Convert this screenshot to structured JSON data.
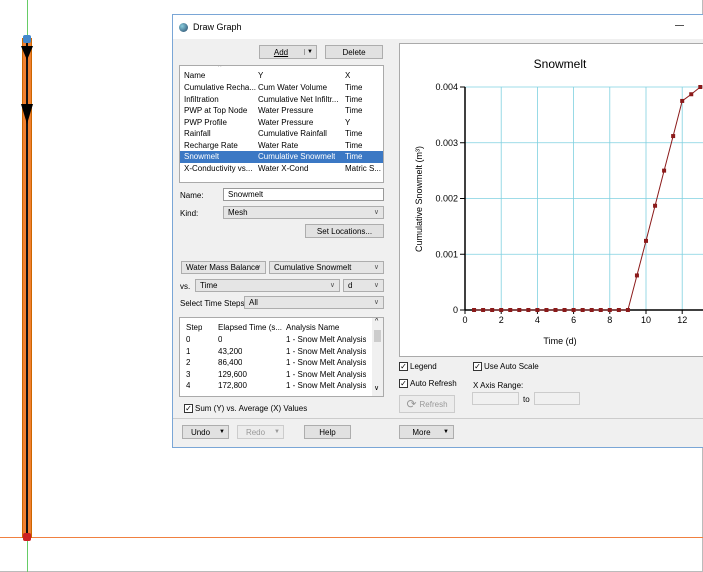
{
  "window": {
    "title": "Draw Graph"
  },
  "toolbar": {
    "add": "Add",
    "delete": "Delete"
  },
  "graphs": {
    "columns": [
      "Name",
      "Y",
      "X"
    ],
    "rows": [
      [
        "Cumulative Recha...",
        "Cum Water Volume",
        "Time"
      ],
      [
        "Infiltration",
        "Cumulative Net Infiltr...",
        "Time"
      ],
      [
        "PWP at Top Node",
        "Water Pressure",
        "Time"
      ],
      [
        "PWP Profile",
        "Water Pressure",
        "Y"
      ],
      [
        "Rainfall",
        "Cumulative Rainfall",
        "Time"
      ],
      [
        "Recharge Rate",
        "Water Rate",
        "Time"
      ],
      [
        "Snowmelt",
        "Cumulative Snowmelt",
        "Time"
      ],
      [
        "X-Conductivity vs...",
        "Water X-Cond",
        "Matric S..."
      ]
    ],
    "selected_index": 6
  },
  "form": {
    "name_label": "Name:",
    "name_value": "Snowmelt",
    "kind_label": "Kind:",
    "kind_value": "Mesh",
    "set_locations": "Set Locations...",
    "category": "Water Mass Balance",
    "quantity": "Cumulative Snowmelt",
    "vs_label": "vs.",
    "vs_value": "Time",
    "unit": "d",
    "steps_label": "Select Time Steps:",
    "steps_value": "All"
  },
  "steps": {
    "columns": [
      "Step",
      "Elapsed Time (s...",
      "Analysis Name"
    ],
    "rows": [
      [
        "0",
        "0",
        "1 - Snow Melt Analysis"
      ],
      [
        "1",
        "43,200",
        "1 - Snow Melt Analysis"
      ],
      [
        "2",
        "86,400",
        "1 - Snow Melt Analysis"
      ],
      [
        "3",
        "129,600",
        "1 - Snow Melt Analysis"
      ],
      [
        "4",
        "172,800",
        "1 - Snow Melt Analysis"
      ]
    ]
  },
  "sum_label": "Sum (Y) vs. Average (X) Values",
  "sum_checked": true,
  "bottom": {
    "undo": "Undo",
    "redo": "Redo",
    "help": "Help",
    "more": "More"
  },
  "options": {
    "legend": "Legend",
    "legend_checked": true,
    "auto_scale": "Use Auto Scale",
    "auto_scale_checked": true,
    "auto_refresh": "Auto Refresh",
    "auto_refresh_checked": true,
    "refresh": "Refresh",
    "x_range_label": "X Axis Range:",
    "to_label": "to"
  },
  "chart_data": {
    "type": "line",
    "title": "Snowmelt",
    "xlabel": "Time (d)",
    "ylabel": "Cumulative Snowmelt (m³)",
    "xlim": [
      0,
      13
    ],
    "ylim": [
      0,
      0.004
    ],
    "xticks": [
      "0",
      "2",
      "4",
      "6",
      "8",
      "10",
      "12"
    ],
    "yticks": [
      "0",
      "0.001",
      "0.002",
      "0.003",
      "0.004"
    ],
    "grid": true,
    "color": "#8b1a1a",
    "grid_color": "#7fd0e0",
    "x": [
      0.5,
      1,
      1.5,
      2,
      2.5,
      3,
      3.5,
      4,
      4.5,
      5,
      5.5,
      6,
      6.5,
      7,
      7.5,
      8,
      8.5,
      9,
      9.5,
      10,
      10.5,
      11,
      11.5,
      12,
      12.5,
      13
    ],
    "y": [
      0,
      0,
      0,
      0,
      0,
      0,
      0,
      0,
      0,
      0,
      0,
      0,
      0,
      0,
      0,
      0,
      0,
      0,
      0.00062,
      0.00124,
      0.00187,
      0.0025,
      0.00312,
      0.00375,
      0.00387,
      0.004
    ]
  }
}
